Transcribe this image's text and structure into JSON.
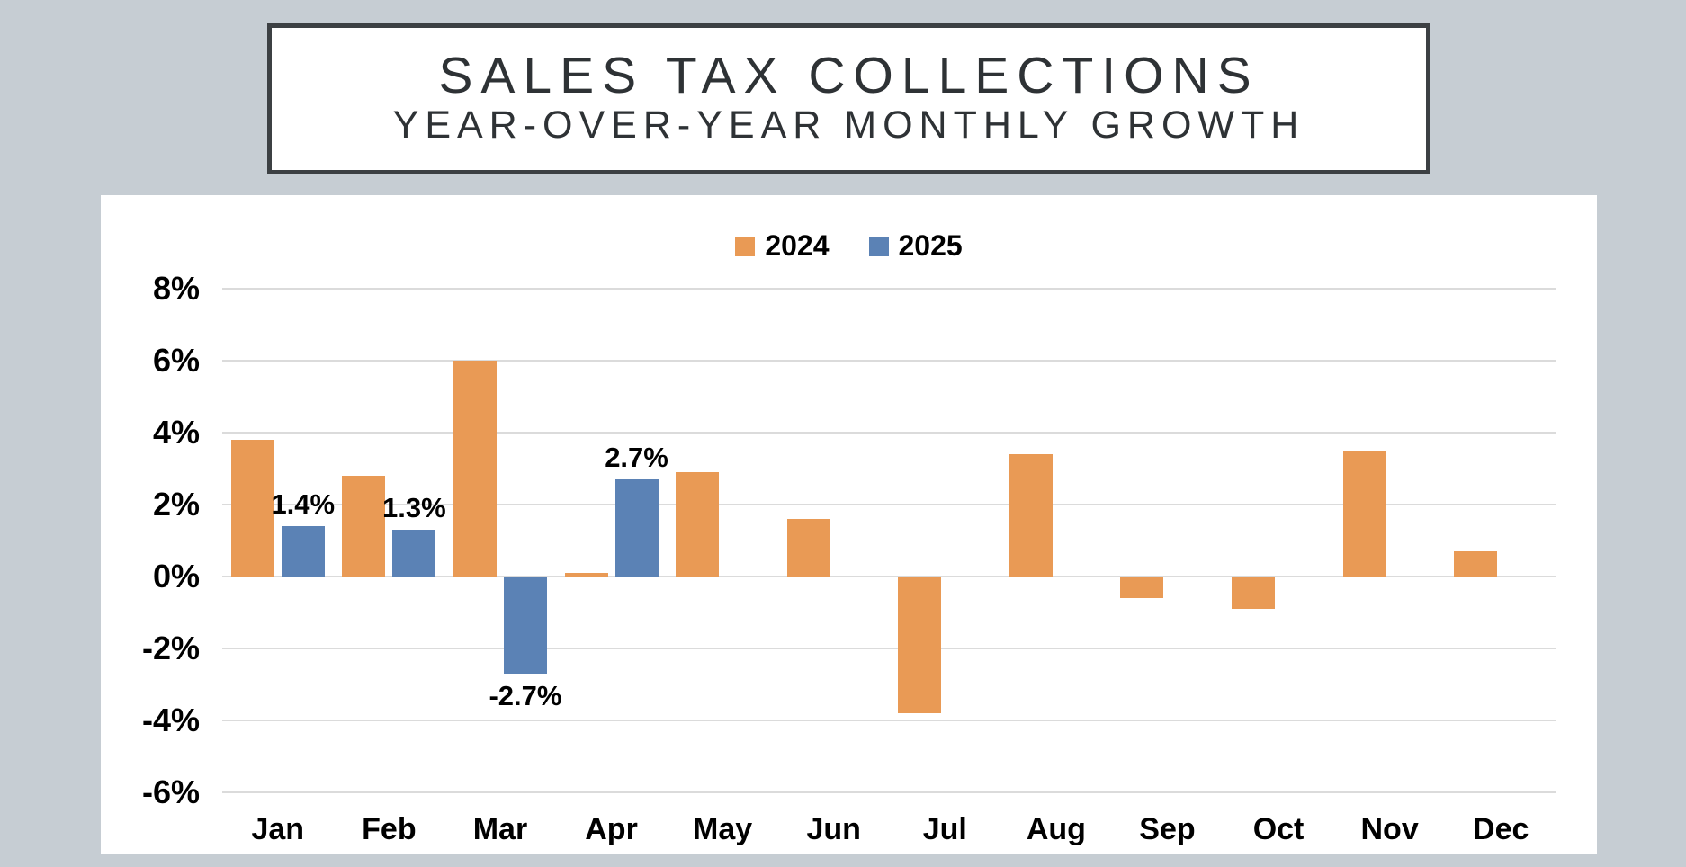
{
  "header": {
    "title": "SALES TAX COLLECTIONS",
    "subtitle": "YEAR-OVER-YEAR MONTHLY GROWTH"
  },
  "legend": {
    "items": [
      {
        "label": "2024",
        "color": "#E99A55"
      },
      {
        "label": "2025",
        "color": "#5B82B5"
      }
    ]
  },
  "chart_data": {
    "type": "bar",
    "title": "SALES TAX COLLECTIONS",
    "subtitle": "YEAR-OVER-YEAR MONTHLY GROWTH",
    "categories": [
      "Jan",
      "Feb",
      "Mar",
      "Apr",
      "May",
      "Jun",
      "Jul",
      "Aug",
      "Sep",
      "Oct",
      "Nov",
      "Dec"
    ],
    "series": [
      {
        "name": "2024",
        "color": "#E99A55",
        "values": [
          3.8,
          2.8,
          6.0,
          0.1,
          2.9,
          1.6,
          -3.8,
          3.4,
          -0.6,
          -0.9,
          3.5,
          0.7
        ],
        "value_labels": [
          "",
          "",
          "",
          "",
          "",
          "",
          "",
          "",
          "",
          "",
          "",
          ""
        ]
      },
      {
        "name": "2025",
        "color": "#5B82B5",
        "values": [
          1.4,
          1.3,
          -2.7,
          2.7,
          null,
          null,
          null,
          null,
          null,
          null,
          null,
          null
        ],
        "value_labels": [
          "1.4%",
          "1.3%",
          "-2.7%",
          "2.7%",
          "",
          "",
          "",
          "",
          "",
          "",
          "",
          ""
        ]
      }
    ],
    "ylabel": "",
    "xlabel": "",
    "ylim": [
      -6,
      8
    ],
    "ytick_step": 2,
    "yticks": [
      "8%",
      "6%",
      "4%",
      "2%",
      "0%",
      "-2%",
      "-4%",
      "-6%"
    ],
    "grid": "horizontal",
    "gridline_color": "#DBDBDB",
    "legend_position": "top-center",
    "plot_background": "#FFFFFF",
    "page_background": "#C6CDD3"
  }
}
